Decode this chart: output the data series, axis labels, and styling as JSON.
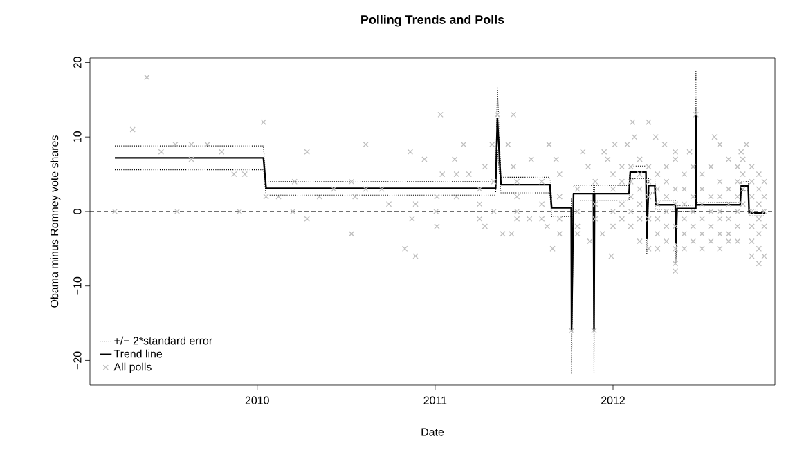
{
  "chart_data": {
    "type": "line",
    "title": "Polling Trends and Polls",
    "xlabel": "Date",
    "ylabel": "Obama minus Romney vote shares",
    "xlim": [
      2009.06,
      2012.91
    ],
    "ylim": [
      -23.3,
      20.6
    ],
    "xticks": [
      2010,
      2011,
      2012
    ],
    "yticks": [
      {
        "value": -20,
        "label": "−20"
      },
      {
        "value": -10,
        "label": "−10"
      },
      0,
      10,
      20
    ],
    "grid": false,
    "legend": "bottom left",
    "ref_lines": [
      {
        "axis": "y",
        "value": 0,
        "color": "#000000",
        "line_style": "dashed"
      }
    ],
    "series": [
      {
        "type": "scatter",
        "name": "All polls",
        "color": "#bebebe",
        "marker": "cross",
        "x": [
          2009.2,
          2009.3,
          2009.38,
          2009.46,
          2009.54,
          2009.55,
          2009.63,
          2009.63,
          2009.72,
          2009.8,
          2009.87,
          2009.93,
          2009.9,
          2010.035,
          2010.05,
          2010.12,
          2010.2,
          2010.21,
          2010.28,
          2010.28,
          2010.35,
          2010.43,
          2010.53,
          2010.53,
          2010.55,
          2010.61,
          2010.61,
          2010.7,
          2010.74,
          2010.83,
          2010.86,
          2010.87,
          2010.89,
          2010.94,
          2010.89,
          2011.03,
          2011.11,
          2011.16,
          2011.04,
          2011.12,
          2011.19,
          2011.01,
          2011.12,
          2011.005,
          2011.01,
          2011.28,
          2011.32,
          2011.28,
          2011.35,
          2011.41,
          2011.44,
          2011.38,
          2011.43,
          2011.44,
          2011.54,
          2011.53,
          2011.64,
          2011.63,
          2011.68,
          2011.66,
          2011.7,
          2011.767,
          2011.83,
          2011.86,
          2011.893,
          2011.95,
          2011.97,
          2012.01,
          2011.94,
          2011.87,
          2011.99,
          2012.11,
          2012.2,
          2012.24,
          2012.12,
          2012.08,
          2012.29,
          2012.35,
          2012.43,
          2012.466,
          2012.57,
          2012.6,
          2012.75,
          2012.72,
          2011.25,
          2011.25,
          2011.25,
          2011.33,
          2011.33,
          2011.46,
          2011.46,
          2011.46,
          2011.46,
          2011.6,
          2011.6,
          2011.6,
          2011.7,
          2011.7,
          2011.7,
          2011.8,
          2011.8,
          2011.8,
          2011.8,
          2011.9,
          2011.9,
          2011.9,
          2012.0,
          2012.0,
          2012.0,
          2012.0,
          2012.05,
          2012.05,
          2012.05,
          2012.05,
          2012.1,
          2012.1,
          2012.1,
          2012.1,
          2012.1,
          2012.15,
          2012.15,
          2012.15,
          2012.15,
          2012.15,
          2012.15,
          2012.2,
          2012.2,
          2012.2,
          2012.2,
          2012.2,
          2012.25,
          2012.25,
          2012.25,
          2012.25,
          2012.25,
          2012.25,
          2012.3,
          2012.3,
          2012.3,
          2012.3,
          2012.3,
          2012.3,
          2012.35,
          2012.35,
          2012.35,
          2012.35,
          2012.35,
          2012.35,
          2012.35,
          2012.4,
          2012.4,
          2012.4,
          2012.4,
          2012.4,
          2012.4,
          2012.45,
          2012.45,
          2012.45,
          2012.45,
          2012.45,
          2012.5,
          2012.5,
          2012.5,
          2012.5,
          2012.5,
          2012.5,
          2012.55,
          2012.55,
          2012.55,
          2012.55,
          2012.55,
          2012.6,
          2012.6,
          2012.6,
          2012.6,
          2012.6,
          2012.6,
          2012.65,
          2012.65,
          2012.65,
          2012.65,
          2012.65,
          2012.65,
          2012.7,
          2012.7,
          2012.7,
          2012.7,
          2012.7,
          2012.7,
          2012.73,
          2012.73,
          2012.73,
          2012.73,
          2012.78,
          2012.78,
          2012.78,
          2012.78,
          2012.78,
          2012.78,
          2012.78,
          2012.82,
          2012.82,
          2012.82,
          2012.82,
          2012.82,
          2012.82,
          2012.82,
          2012.85,
          2012.85,
          2012.85,
          2012.85,
          2012.85
        ],
        "values": [
          0,
          11,
          18,
          8,
          9,
          0,
          9,
          7,
          9,
          8,
          5,
          5,
          0,
          12,
          2,
          2,
          0,
          4,
          8,
          -1,
          2,
          3,
          -3,
          4,
          2,
          3,
          9,
          3,
          1,
          -5,
          8,
          -1,
          1,
          7,
          -6,
          13,
          7,
          9,
          5,
          5,
          5,
          2,
          2,
          0,
          -2,
          6,
          9,
          -2,
          13,
          9,
          13,
          -3,
          -3,
          6,
          7,
          -1,
          9,
          -2,
          7,
          -5,
          -3,
          -16,
          8,
          6,
          -16,
          8,
          7,
          9,
          -3,
          -4,
          -6,
          12,
          12,
          10,
          10,
          9,
          9,
          8,
          8,
          13,
          10,
          9,
          9,
          8,
          3,
          1,
          -1,
          4,
          0,
          4,
          2,
          0,
          -1,
          4,
          1,
          -1,
          5,
          2,
          -1,
          3,
          0,
          -2,
          -3,
          4,
          1,
          -1,
          5,
          3,
          0,
          -2,
          6,
          4,
          1,
          -1,
          6,
          4,
          2,
          0,
          -2,
          7,
          5,
          3,
          1,
          -1,
          -4,
          6,
          4,
          2,
          -1,
          -5,
          5,
          3,
          1,
          -1,
          -3,
          -5,
          6,
          4,
          2,
          0,
          -2,
          -4,
          7,
          3,
          1,
          -2,
          -5,
          -7,
          -8,
          5,
          3,
          1,
          -1,
          -3,
          -5,
          6,
          2,
          0,
          -2,
          -4,
          5,
          3,
          1,
          -1,
          -3,
          -5,
          6,
          2,
          0,
          -2,
          -4,
          4,
          2,
          0,
          -1,
          -3,
          -5,
          7,
          3,
          1,
          -1,
          -3,
          -4,
          6,
          4,
          2,
          0,
          -2,
          -4,
          7,
          5,
          3,
          1,
          6,
          4,
          2,
          0,
          -2,
          -4,
          -6,
          5,
          3,
          1,
          -1,
          -3,
          -5,
          -7,
          4,
          2,
          0,
          -2,
          -6
        ]
      },
      {
        "name": "+/− 2*standard error",
        "color": "#000000",
        "line_style": "dotted",
        "x": [
          2009.2,
          2010.035,
          2010.05,
          2011.34,
          2011.35,
          2011.37,
          2011.645,
          2011.655,
          2011.765,
          2011.767,
          2011.778,
          2011.89,
          2011.893,
          2011.896,
          2012.09,
          2012.097,
          2012.185,
          2012.19,
          2012.2,
          2012.235,
          2012.24,
          2012.35,
          2012.354,
          2012.36,
          2012.465,
          2012.466,
          2012.468,
          2012.715,
          2012.72,
          2012.76,
          2012.765,
          2012.854
        ],
        "values": [
          8.8,
          8.8,
          4.0,
          4.0,
          16.7,
          4.6,
          4.6,
          1.8,
          1.8,
          -10,
          3.5,
          3.5,
          -10,
          3.5,
          3.5,
          6.1,
          6.1,
          -1.4,
          4.5,
          4.5,
          1.5,
          1.5,
          -1.4,
          0.8,
          0.8,
          18.8,
          1.2,
          1.2,
          4.0,
          4.0,
          0.3,
          0.3
        ]
      },
      {
        "color": "#000000",
        "line_style": "dotted",
        "x": [
          2009.2,
          2010.035,
          2010.05,
          2011.34,
          2011.35,
          2011.37,
          2011.645,
          2011.655,
          2011.765,
          2011.767,
          2011.778,
          2011.89,
          2011.893,
          2011.896,
          2012.09,
          2012.097,
          2012.185,
          2012.19,
          2012.2,
          2012.235,
          2012.24,
          2012.35,
          2012.354,
          2012.36,
          2012.465,
          2012.466,
          2012.468,
          2012.715,
          2012.72,
          2012.76,
          2012.765,
          2012.854
        ],
        "values": [
          5.6,
          5.6,
          2.2,
          2.2,
          8.3,
          2.5,
          2.5,
          -0.7,
          -0.7,
          -21.8,
          1.5,
          1.5,
          -21.8,
          1.5,
          1.5,
          4.4,
          4.4,
          -5.8,
          2.5,
          2.5,
          0.3,
          0.3,
          -7.0,
          0.0,
          0.0,
          7.2,
          0.6,
          0.6,
          2.8,
          2.8,
          -0.6,
          -0.6
        ]
      },
      {
        "name": "Trend line",
        "color": "#000000",
        "line_style": "solid",
        "x": [
          2009.2,
          2010.035,
          2010.05,
          2011.34,
          2011.35,
          2011.37,
          2011.645,
          2011.655,
          2011.765,
          2011.767,
          2011.778,
          2011.89,
          2011.893,
          2011.896,
          2012.09,
          2012.097,
          2012.185,
          2012.19,
          2012.2,
          2012.235,
          2012.24,
          2012.35,
          2012.354,
          2012.36,
          2012.465,
          2012.466,
          2012.468,
          2012.715,
          2012.72,
          2012.76,
          2012.765,
          2012.854
        ],
        "values": [
          7.2,
          7.2,
          3.1,
          3.1,
          12.5,
          3.6,
          3.6,
          0.5,
          0.5,
          -16,
          2.4,
          2.4,
          -16,
          2.4,
          2.4,
          5.3,
          5.3,
          -3.6,
          3.5,
          3.5,
          0.9,
          0.9,
          -4.2,
          0.4,
          0.4,
          13,
          0.9,
          0.9,
          3.4,
          3.4,
          -0.2,
          -0.2
        ]
      }
    ]
  }
}
